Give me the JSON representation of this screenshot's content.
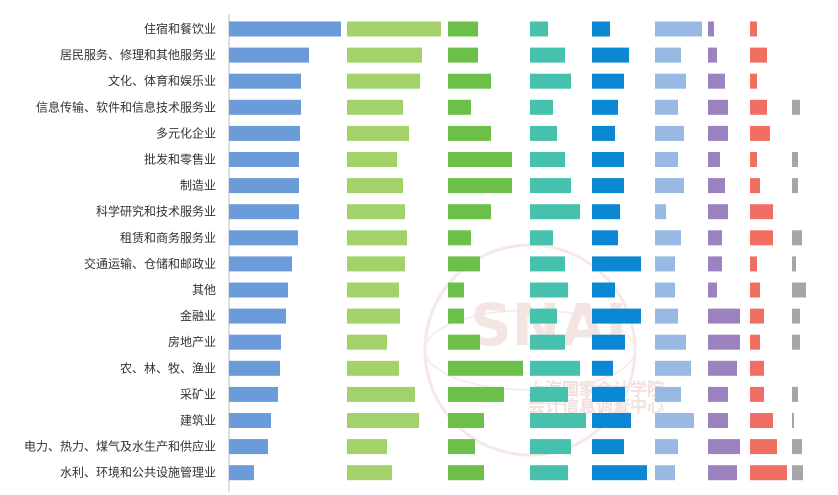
{
  "chart_data": {
    "type": "bar",
    "orientation": "horizontal",
    "layout": "small-multiples",
    "title": "",
    "xlabel": "",
    "ylabel": "",
    "grid": false,
    "legend": "none",
    "categories": [
      "住宿和餐饮业",
      "居民服务、修理和其他服务业",
      "文化、体育和娱乐业",
      "信息传输、软件和信息技术服务业",
      "多元化企业",
      "批发和零售业",
      "制造业",
      "科学研究和技术服务业",
      "租赁和商务服务业",
      "交通运输、仓储和邮政业",
      "其他",
      "金融业",
      "房地产业",
      "农、林、牧、渔业",
      "采矿业",
      "建筑业",
      "电力、热力、煤气及水生产和供应业",
      "水利、环境和公共设施管理业"
    ],
    "series": [
      {
        "color": "#6b9bd8",
        "values": [
          112,
          80,
          72,
          72,
          71,
          70,
          70,
          70,
          69,
          63,
          59,
          57,
          52,
          51,
          49,
          42,
          39,
          25
        ]
      },
      {
        "color": "#a3d16a",
        "values": [
          94,
          75,
          73,
          56,
          62,
          50,
          56,
          58,
          60,
          58,
          52,
          53,
          40,
          52,
          68,
          72,
          40,
          45
        ]
      },
      {
        "color": "#6cc04a",
        "values": [
          30,
          30,
          43,
          23,
          43,
          64,
          64,
          43,
          23,
          32,
          16,
          16,
          32,
          75,
          56,
          36,
          27,
          36
        ]
      },
      {
        "color": "#45c1ad",
        "values": [
          18,
          35,
          41,
          23,
          27,
          35,
          41,
          50,
          23,
          35,
          38,
          27,
          35,
          50,
          38,
          56,
          41,
          38
        ]
      },
      {
        "color": "#0a88d4",
        "values": [
          18,
          37,
          32,
          26,
          23,
          32,
          32,
          28,
          26,
          49,
          23,
          49,
          33,
          21,
          33,
          39,
          32,
          55
        ]
      },
      {
        "color": "#97b9e3",
        "values": [
          47,
          26,
          31,
          23,
          29,
          23,
          29,
          11,
          26,
          20,
          20,
          23,
          31,
          36,
          26,
          39,
          23,
          20
        ]
      },
      {
        "color": "#9d82c1",
        "values": [
          6,
          9,
          17,
          20,
          20,
          12,
          17,
          20,
          14,
          14,
          9,
          32,
          32,
          29,
          20,
          20,
          32,
          29
        ]
      },
      {
        "color": "#f06f62",
        "values": [
          7,
          17,
          7,
          17,
          20,
          7,
          10,
          23,
          23,
          7,
          10,
          14,
          10,
          14,
          14,
          23,
          27,
          37
        ]
      },
      {
        "color": "#a6a6a6",
        "values": [
          0,
          0,
          0,
          8,
          0,
          6,
          6,
          0,
          10,
          4,
          14,
          8,
          8,
          0,
          6,
          2,
          10,
          11
        ]
      }
    ]
  },
  "watermark": {
    "logo_text": "SNAI",
    "line1": "上海国家会计学院",
    "line2": "会计信息调查中心"
  }
}
